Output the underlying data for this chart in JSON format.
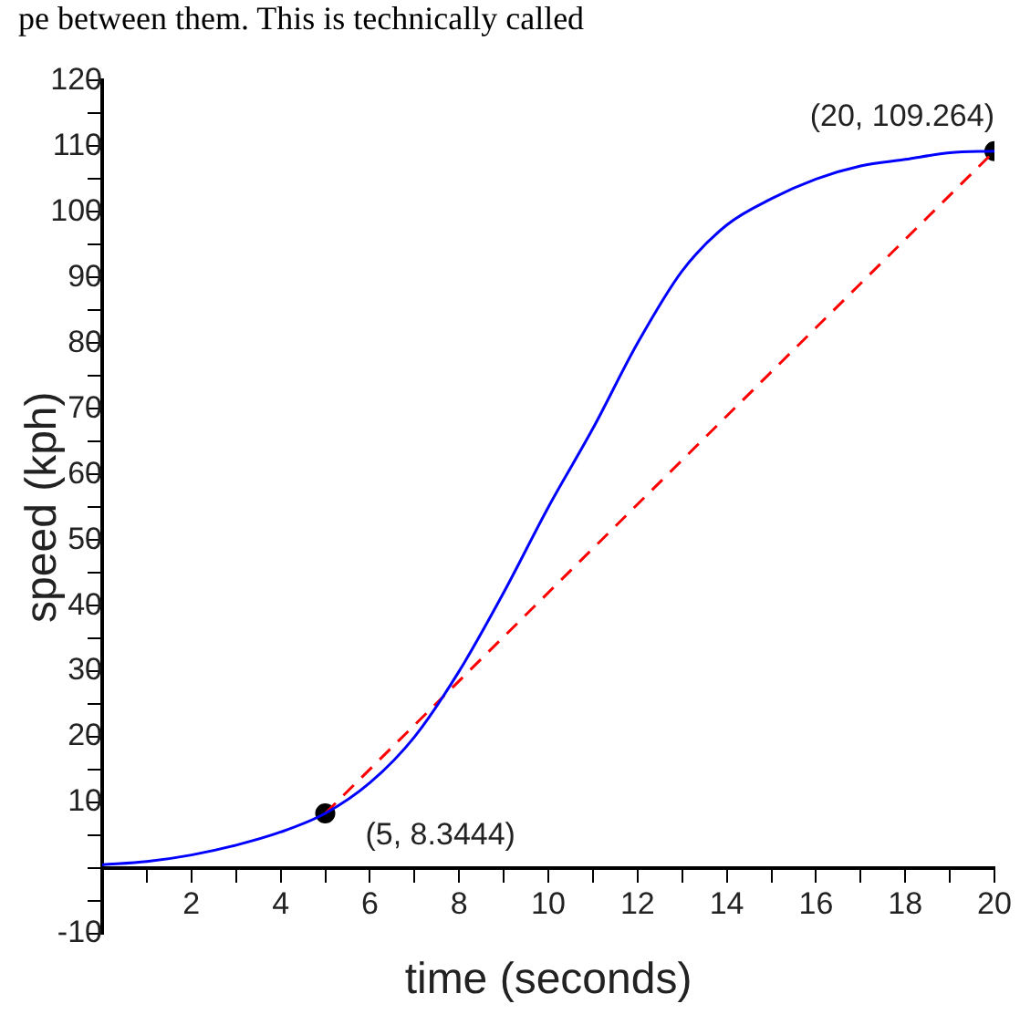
{
  "chart_data": {
    "type": "line",
    "xlabel": "time (seconds)",
    "ylabel": "speed (kph)",
    "annotations": [
      "pe between them. This is technically called",
      {
        "text": "(5, 8.3444)",
        "x": 5,
        "y": 8.3444
      },
      {
        "text": "(20, 109.264)",
        "x": 20,
        "y": 109.264
      }
    ],
    "xlim": [
      0,
      20
    ],
    "ylim": [
      -10,
      120
    ],
    "xticks": [
      {
        "value": 1,
        "label": null
      },
      2,
      {
        "value": 3,
        "label": null
      },
      4,
      {
        "value": 5,
        "label": null
      },
      6,
      {
        "value": 7,
        "label": null
      },
      8,
      {
        "value": 9,
        "label": null
      },
      10,
      {
        "value": 11,
        "label": null
      },
      12,
      {
        "value": 13,
        "label": null
      },
      14,
      {
        "value": 15,
        "label": null
      },
      16,
      {
        "value": 17,
        "label": null
      },
      18,
      {
        "value": 19,
        "label": null
      },
      20
    ],
    "yticks": [
      -10,
      {
        "value": -5,
        "label": null
      },
      {
        "value": 0,
        "label": null
      },
      {
        "value": 5,
        "label": null
      },
      10,
      {
        "value": 15,
        "label": null
      },
      20,
      {
        "value": 25,
        "label": null
      },
      30,
      {
        "value": 35,
        "label": null
      },
      40,
      {
        "value": 45,
        "label": null
      },
      50,
      {
        "value": 55,
        "label": null
      },
      60,
      {
        "value": 65,
        "label": null
      },
      70,
      {
        "value": 75,
        "label": null
      },
      80,
      {
        "value": 85,
        "label": null
      },
      90,
      {
        "value": 95,
        "label": null
      },
      100,
      {
        "value": 105,
        "label": null
      },
      110,
      {
        "value": 115,
        "label": null
      },
      120
    ],
    "grid": false,
    "legend": false,
    "series": [
      {
        "type": "line",
        "color": "#0000ff",
        "line_style": "solid",
        "marker": "none",
        "x": [
          0,
          1,
          2,
          3,
          4,
          5,
          6,
          7,
          8,
          9,
          10,
          11,
          12,
          13,
          14,
          15,
          16,
          17,
          18,
          19,
          20
        ],
        "values": [
          0.5,
          1,
          2,
          3.5,
          5.5,
          8.3444,
          13,
          20,
          30,
          42,
          55,
          67,
          80,
          91,
          98,
          102,
          105,
          107,
          108,
          109,
          109.264
        ]
      },
      {
        "type": "line",
        "color": "#ff0000",
        "line_style": "dashed",
        "marker": "none",
        "x": [
          5,
          20
        ],
        "values": [
          8.3444,
          109.264
        ]
      },
      {
        "type": "scatter",
        "color": "#000000",
        "marker": "circle",
        "x": [
          5,
          20
        ],
        "values": [
          8.3444,
          109.264
        ]
      }
    ]
  }
}
